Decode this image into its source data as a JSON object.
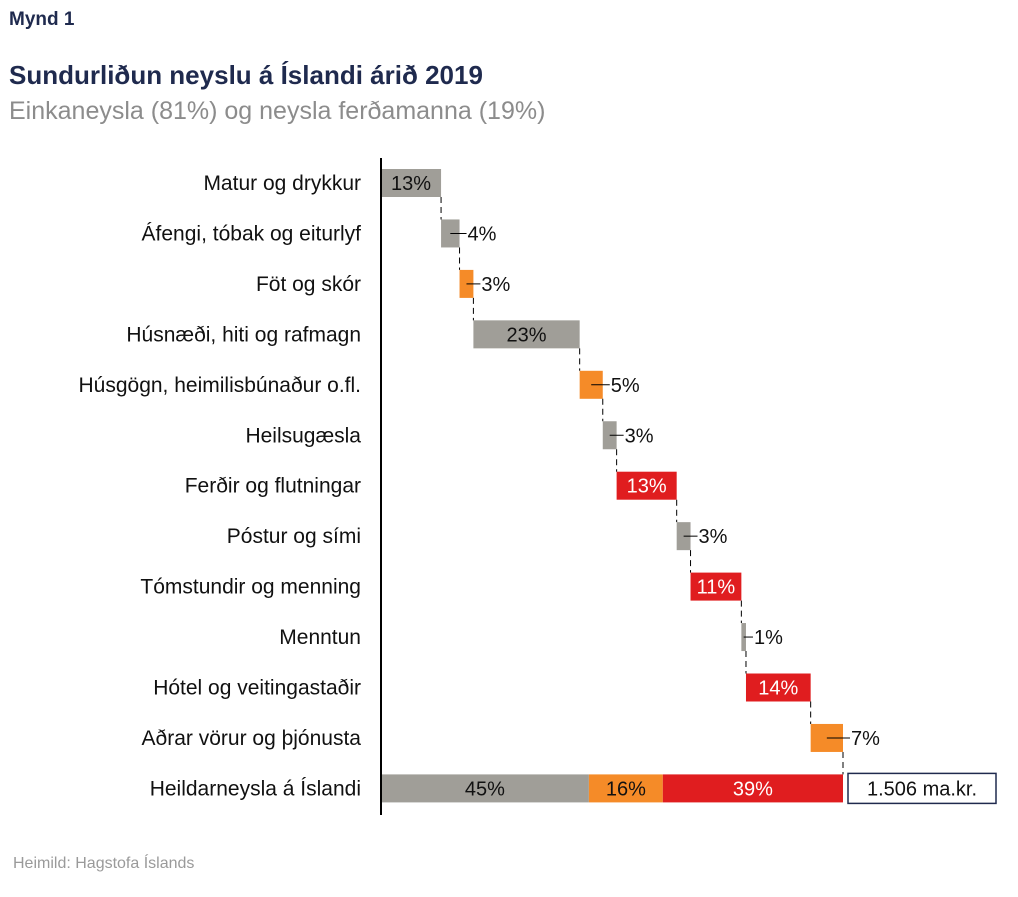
{
  "header": {
    "figure_label": "Mynd 1",
    "title": "Sundurliðun neyslu á Íslandi árið 2019",
    "subtitle": "Einkaneysla (81%) og neysla ferðamanna (19%)"
  },
  "source": "Heimild: Hagstofa Íslands",
  "colors": {
    "gray": "#a09e98",
    "orange": "#f58b28",
    "red": "#e01d1f",
    "axis": "#000000",
    "total_box_border": "#1f2a4e"
  },
  "chart_data": {
    "type": "bar",
    "subtype": "waterfall-horizontal",
    "title": "Sundurliðun neyslu á Íslandi árið 2019",
    "subtitle": "Einkaneysla (81%) og neysla ferðamanna (19%)",
    "xlabel": "",
    "ylabel": "",
    "unit": "%",
    "xlim": [
      0,
      100
    ],
    "grid": false,
    "legend": "none",
    "categories": [
      "Matur og drykkur",
      "Áfengi, tóbak og eiturlyf",
      "Föt og skór",
      "Húsnæði, hiti og rafmagn",
      "Húsgögn, heimilisbúnaður o.fl.",
      "Heilsugæsla",
      "Ferðir og flutningar",
      "Póstur og sími",
      "Tómstundir og menning",
      "Menntun",
      "Hótel og veitingastaðir",
      "Aðrar vörur og þjónusta"
    ],
    "values": [
      13,
      4,
      3,
      23,
      5,
      3,
      13,
      3,
      11,
      1,
      14,
      7
    ],
    "labels": [
      "13%",
      "4%",
      "3%",
      "23%",
      "5%",
      "3%",
      "13%",
      "3%",
      "11%",
      "1%",
      "14%",
      "7%"
    ],
    "color_groups": [
      "gray",
      "gray",
      "orange",
      "gray",
      "orange",
      "gray",
      "red",
      "gray",
      "red",
      "gray",
      "red",
      "orange"
    ],
    "total": {
      "category": "Heildarneysla á Íslandi",
      "segments": [
        {
          "group": "gray",
          "value": 45,
          "label": "45%"
        },
        {
          "group": "orange",
          "value": 16,
          "label": "16%"
        },
        {
          "group": "red",
          "value": 39,
          "label": "39%"
        }
      ],
      "annotation": "1.506 ma.kr."
    }
  }
}
